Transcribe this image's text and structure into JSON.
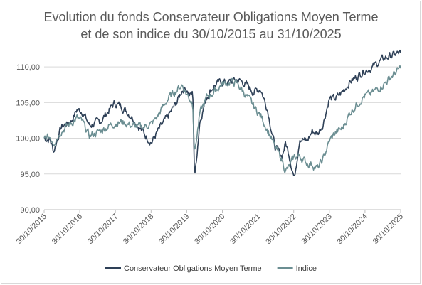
{
  "chart_data": {
    "type": "line",
    "title_lines": [
      "Evolution du fonds Conservateur Obligations Moyen Terme",
      "et de son indice du 30/10/2015 au 31/10/2025"
    ],
    "y_ticks": [
      "90,00",
      "95,00",
      "100,00",
      "105,00",
      "110,00"
    ],
    "ylim": [
      90,
      112
    ],
    "x_ticks": [
      "30/10/2015",
      "30/10/2016",
      "30/10/2017",
      "30/10/2018",
      "30/10/2019",
      "30/10/2020",
      "30/10/2021",
      "30/10/2022",
      "30/10/2023",
      "30/10/2024",
      "30/10/2025"
    ],
    "xlim": [
      2015.83,
      2025.83
    ],
    "grid": "horizontal",
    "legend_position": "bottom",
    "series": [
      {
        "name": "Conservateur Obligations Moyen Terme",
        "color": "#2e4057",
        "x": [
          2015.83,
          2016.0,
          2016.1,
          2016.3,
          2016.6,
          2016.75,
          2016.9,
          2017.1,
          2017.4,
          2017.6,
          2017.8,
          2018.0,
          2018.3,
          2018.55,
          2018.7,
          2018.85,
          2019.0,
          2019.3,
          2019.55,
          2019.7,
          2019.8,
          2019.92,
          2020.0,
          2020.05,
          2020.2,
          2020.4,
          2020.6,
          2020.8,
          2021.0,
          2021.2,
          2021.35,
          2021.5,
          2021.7,
          2021.9,
          2022.1,
          2022.3,
          2022.5,
          2022.6,
          2022.7,
          2022.85,
          2023.0,
          2023.2,
          2023.35,
          2023.5,
          2023.65,
          2023.83,
          2024.0,
          2024.2,
          2024.4,
          2024.6,
          2024.8,
          2025.0,
          2025.2,
          2025.4,
          2025.6,
          2025.83
        ],
        "y": [
          100.0,
          99.8,
          98.2,
          101.5,
          102.5,
          104.0,
          103.8,
          101.8,
          102.3,
          103.6,
          104.9,
          104.5,
          103.0,
          101.2,
          100.2,
          99.5,
          100.8,
          103.0,
          105.0,
          106.8,
          107.2,
          106.0,
          106.3,
          94.3,
          102.5,
          106.0,
          107.4,
          107.9,
          107.8,
          108.2,
          108.0,
          107.5,
          106.5,
          107.0,
          104.0,
          98.8,
          97.5,
          99.3,
          97.8,
          94.4,
          100.2,
          99.5,
          101.0,
          100.6,
          102.0,
          105.6,
          105.5,
          106.5,
          107.9,
          108.6,
          109.5,
          109.8,
          110.6,
          111.3,
          111.6,
          112.0
        ]
      },
      {
        "name": "Indice",
        "color": "#6b8e92",
        "x": [
          2015.83,
          2016.0,
          2016.1,
          2016.3,
          2016.6,
          2016.75,
          2016.9,
          2017.1,
          2017.4,
          2017.6,
          2017.8,
          2018.0,
          2018.3,
          2018.55,
          2018.7,
          2018.85,
          2019.0,
          2019.3,
          2019.55,
          2019.7,
          2019.8,
          2019.92,
          2020.0,
          2020.05,
          2020.2,
          2020.4,
          2020.6,
          2020.8,
          2021.0,
          2021.2,
          2021.35,
          2021.5,
          2021.7,
          2021.9,
          2022.1,
          2022.3,
          2022.5,
          2022.6,
          2022.7,
          2022.85,
          2023.0,
          2023.2,
          2023.35,
          2023.5,
          2023.65,
          2023.83,
          2024.0,
          2024.2,
          2024.4,
          2024.6,
          2024.8,
          2025.0,
          2025.2,
          2025.4,
          2025.6,
          2025.83
        ],
        "y": [
          100.0,
          100.2,
          99.5,
          101.0,
          102.2,
          102.8,
          102.3,
          100.3,
          101.0,
          101.6,
          102.1,
          102.3,
          101.8,
          101.5,
          101.8,
          102.0,
          103.0,
          105.5,
          106.8,
          107.5,
          106.5,
          105.5,
          105.0,
          98.0,
          103.5,
          105.8,
          106.5,
          107.5,
          107.8,
          107.8,
          107.0,
          106.0,
          104.5,
          103.2,
          101.2,
          98.8,
          97.0,
          95.5,
          95.9,
          97.4,
          97.5,
          96.5,
          96.4,
          95.7,
          97.0,
          99.6,
          100.8,
          101.4,
          103.5,
          104.8,
          105.9,
          106.2,
          107.0,
          107.8,
          108.8,
          109.8
        ]
      }
    ]
  }
}
